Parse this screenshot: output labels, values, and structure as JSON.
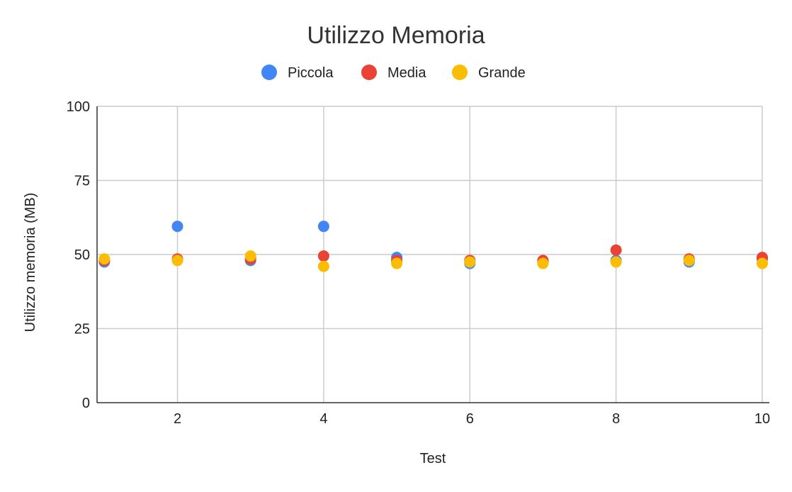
{
  "chart_data": {
    "type": "scatter",
    "title": "Utilizzo Memoria",
    "xlabel": "Test",
    "ylabel": "Utilizzo memoria (MB)",
    "xlim": [
      0.9,
      10.0
    ],
    "ylim": [
      0,
      100
    ],
    "x_ticks": [
      2,
      4,
      6,
      8,
      10
    ],
    "y_ticks": [
      0,
      25,
      50,
      75,
      100
    ],
    "grid": true,
    "legend": "top-center",
    "x": [
      1,
      2,
      3,
      4,
      5,
      6,
      7,
      8,
      9,
      10
    ],
    "series": [
      {
        "name": "Piccola",
        "color": "#4285f4",
        "values": [
          47.5,
          59.5,
          48.0,
          59.5,
          49.0,
          47.0,
          47.5,
          48.0,
          47.5,
          48.5
        ]
      },
      {
        "name": "Media",
        "color": "#ea4335",
        "values": [
          48.0,
          48.5,
          48.5,
          49.5,
          48.0,
          48.0,
          48.0,
          51.5,
          48.5,
          49.0
        ]
      },
      {
        "name": "Grande",
        "color": "#fbbc04",
        "values": [
          48.5,
          48.0,
          49.5,
          46.0,
          47.0,
          47.5,
          47.0,
          47.5,
          48.0,
          47.0
        ]
      }
    ]
  }
}
